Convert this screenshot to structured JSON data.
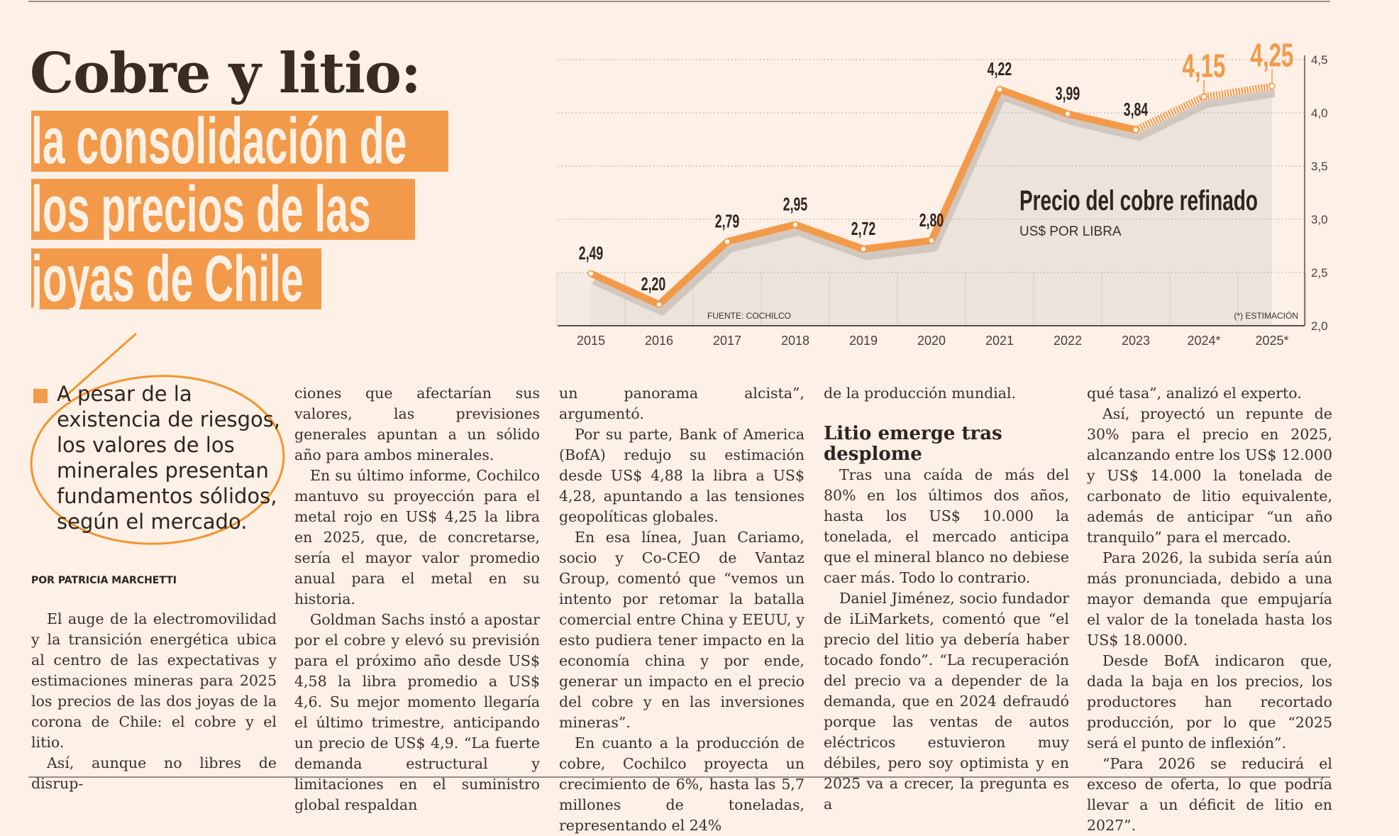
{
  "headline": {
    "title": "Cobre y litio:",
    "highlight_lines": [
      "la consolidación de",
      "los precios de las",
      "joyas de Chile"
    ],
    "accent_color": "#f29a4a"
  },
  "pull_quote": "A pesar de la existencia de riesgos, los valores de los minerales presentan fundamentos sólidos, según el mercado.",
  "byline": "POR PATRICIA MARCHETTI",
  "columns": [
    {
      "paragraphs": [
        {
          "text": "El auge de la electromovilidad y la transición energética ubica al centro de las expectativas y estimaciones mineras para 2025 los precios de las dos joyas de la corona de Chile: el cobre y el litio.",
          "cont": false
        },
        {
          "text": "Así, aunque no libres de disrup-",
          "cont": false
        }
      ]
    },
    {
      "paragraphs": [
        {
          "text": "ciones que afectarían sus valores, las previsiones generales apuntan a un sólido año para ambos minerales.",
          "cont": true
        },
        {
          "text": "En su último informe, Cochilco mantuvo su proyección para el metal rojo en US$ 4,25 la libra en 2025, que, de concretarse, sería el mayor valor promedio anual para el metal en su historia.",
          "cont": false
        },
        {
          "text": "Goldman Sachs instó a apostar por el cobre y elevó su previsión para el próximo año desde US$ 4,58 la libra promedio a US$ 4,6. Su mejor momento llegaría el último trimestre, anticipando un precio de US$ 4,9. “La fuerte demanda estructural y limitaciones en el suministro global respaldan",
          "cont": false
        }
      ]
    },
    {
      "paragraphs": [
        {
          "text": "un panorama alcista”, argumentó.",
          "cont": true
        },
        {
          "text": "Por su parte, Bank of America (BofA) redujo su estimación desde US$ 4,88 la libra a US$ 4,28, apuntando a las tensiones geopolíticas globales.",
          "cont": false
        },
        {
          "text": "En esa línea, Juan Cariamo, socio y Co-CEO de Vantaz Group, comentó que “vemos un intento por retomar la batalla comercial entre China y EEUU, y esto pudiera tener impacto en la economía china y por ende, generar un impacto en el precio del cobre y en las inversiones mineras”.",
          "cont": false
        },
        {
          "text": "En cuanto a la producción de cobre, Cochilco proyecta un crecimiento de 6%, hasta las 5,7 millones de toneladas, representando el 24%",
          "cont": false
        }
      ]
    },
    {
      "paragraphs": [
        {
          "text": "de la producción mundial.",
          "cont": true
        }
      ],
      "subheading": "Litio emerge tras desplome",
      "paragraphs_after": [
        {
          "text": "Tras una caída de más del 80% en los últimos dos años, hasta los US$ 10.000 la tonelada, el mercado anticipa que el mineral blanco no debiese caer más. Todo lo contrario.",
          "cont": false
        },
        {
          "text": "Daniel Jiménez, socio fundador de iLiMarkets, comentó que “el precio del litio ya debería haber tocado fondo”. “La recuperación del precio va a depender de la demanda, que en 2024 defraudó porque las ventas de autos eléctricos estuvieron muy débiles, pero soy optimista y en 2025 va a crecer, la pregunta es a",
          "cont": false
        }
      ]
    },
    {
      "paragraphs": [
        {
          "text": "qué tasa”, analizó el experto.",
          "cont": true
        },
        {
          "text": "Así, proyectó un repunte de 30% para el precio en 2025, alcanzando entre los US$ 12.000 y US$ 14.000 la tonelada de carbonato de litio equivalente, además de anticipar “un año tranquilo” para el mercado.",
          "cont": false
        },
        {
          "text": "Para 2026, la subida sería aún más pronunciada, debido a una mayor demanda que empujaría el valor de la tonelada hasta los US$ 18.0000.",
          "cont": false
        },
        {
          "text": "Desde BofA indicaron que, dada la baja en los precios, los productores han recortado producción, por lo que “2025 será el punto de inflexión”.",
          "cont": false
        },
        {
          "text": "“Para 2026 se reducirá el exceso de oferta, lo que podría llevar a un déficit de litio en 2027”.",
          "cont": false
        }
      ]
    }
  ],
  "chart_data": {
    "type": "line",
    "title": "Precio del cobre refinado",
    "subtitle": "US$ POR LIBRA",
    "source": "FUENTE: COCHILCO",
    "note": "(*) ESTIMACIÓN",
    "categories": [
      "2015",
      "2016",
      "2017",
      "2018",
      "2019",
      "2020",
      "2021",
      "2022",
      "2023",
      "2024*",
      "2025*"
    ],
    "values": [
      2.49,
      2.2,
      2.79,
      2.95,
      2.72,
      2.8,
      4.22,
      3.99,
      3.84,
      4.15,
      4.25
    ],
    "value_labels": [
      "2,49",
      "2,20",
      "2,79",
      "2,95",
      "2,72",
      "2,80",
      "4,22",
      "3,99",
      "3,84",
      "4,15",
      "4,25"
    ],
    "estimated_from_index": 9,
    "y_ticks": [
      "2,0",
      "2,5",
      "3,0",
      "3,5",
      "4,0",
      "4,5"
    ],
    "y_tick_values": [
      2.0,
      2.5,
      3.0,
      3.5,
      4.0,
      4.5
    ],
    "ylim": [
      2.0,
      4.5
    ],
    "grid": true,
    "line_color": "#f29a4a",
    "label_color": "#2e2420",
    "estimate_label_color": "#f29a4a"
  }
}
